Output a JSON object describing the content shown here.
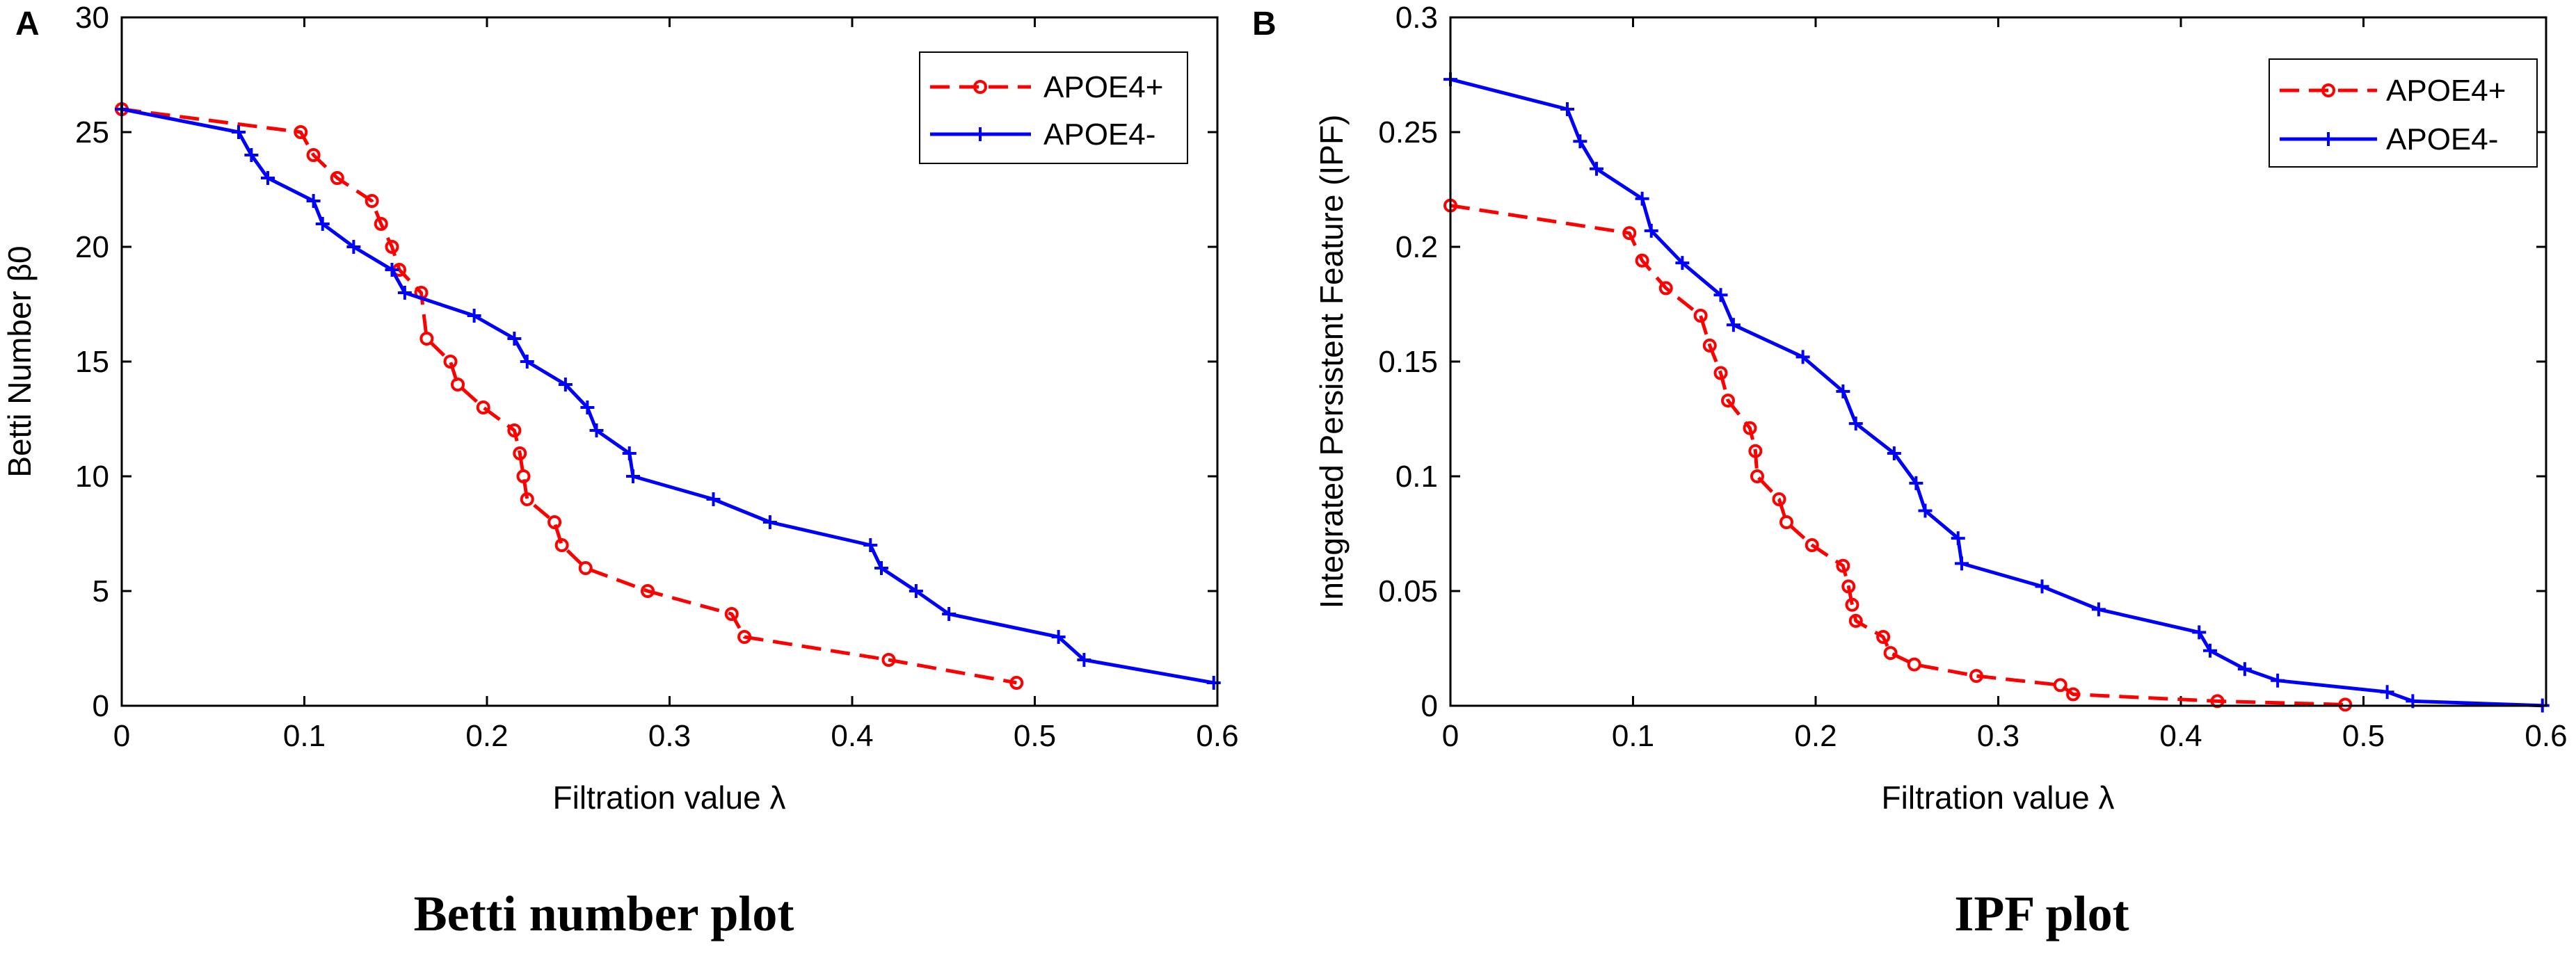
{
  "chart_data": [
    {
      "type": "line",
      "panel_label": "A",
      "title": "",
      "caption": "Betti  number plot",
      "xlabel": "Filtration value λ",
      "ylabel": "Betti Number β0",
      "xlim": [
        0,
        0.6
      ],
      "ylim": [
        0,
        30
      ],
      "xticks": [
        0,
        0.1,
        0.2,
        0.3,
        0.4,
        0.5,
        0.6
      ],
      "xtick_labels": [
        "0",
        "0.1",
        "0.2",
        "0.3",
        "0.4",
        "0.5",
        "0.6"
      ],
      "yticks": [
        0,
        5,
        10,
        15,
        20,
        25,
        30
      ],
      "ytick_labels": [
        "0",
        "5",
        "10",
        "15",
        "20",
        "25",
        "30"
      ],
      "legend_position": "top-right",
      "series": [
        {
          "name": "APOE4+",
          "color": "#ff0000",
          "line_style": "dashed",
          "marker": "circle",
          "x": [
            0,
            0.098,
            0.105,
            0.118,
            0.137,
            0.142,
            0.148,
            0.152,
            0.164,
            0.167,
            0.18,
            0.184,
            0.198,
            0.215,
            0.218,
            0.22,
            0.222,
            0.237,
            0.241,
            0.254,
            0.288,
            0.334,
            0.341,
            0.42,
            0.49
          ],
          "y": [
            26,
            25,
            24,
            23,
            22,
            21,
            20,
            19,
            18,
            16,
            15,
            14,
            13,
            12,
            11,
            10,
            9,
            8,
            7,
            6,
            5,
            4,
            3,
            2,
            1
          ]
        },
        {
          "name": "APOE4-",
          "color": "#0000ff",
          "line_style": "solid",
          "marker": "plus",
          "x": [
            0,
            0.064,
            0.071,
            0.08,
            0.105,
            0.11,
            0.127,
            0.148,
            0.155,
            0.193,
            0.215,
            0.222,
            0.243,
            0.255,
            0.26,
            0.278,
            0.28,
            0.324,
            0.355,
            0.41,
            0.416,
            0.435,
            0.453,
            0.513,
            0.527,
            0.598
          ],
          "y": [
            26,
            25,
            24,
            23,
            22,
            21,
            20,
            19,
            18,
            17,
            16,
            15,
            14,
            13,
            12,
            11,
            10,
            9,
            8,
            7,
            6,
            5,
            4,
            3,
            2,
            1
          ]
        }
      ]
    },
    {
      "type": "line",
      "panel_label": "B",
      "title": "",
      "caption": "IPF plot",
      "xlabel": "Filtration value λ",
      "ylabel": "Integrated Persistent Feature (IPF)",
      "xlim": [
        0,
        0.6
      ],
      "ylim": [
        0,
        0.3
      ],
      "xticks": [
        0,
        0.1,
        0.2,
        0.3,
        0.4,
        0.5,
        0.6
      ],
      "xtick_labels": [
        "0",
        "0.1",
        "0.2",
        "0.3",
        "0.4",
        "0.5",
        "0.6"
      ],
      "yticks": [
        0,
        0.05,
        0.1,
        0.15,
        0.2,
        0.25,
        0.3
      ],
      "ytick_labels": [
        "0",
        "0.05",
        "0.1",
        "0.15",
        "0.2",
        "0.25",
        "0.3"
      ],
      "legend_position": "top-right",
      "series": [
        {
          "name": "APOE4+",
          "color": "#ff0000",
          "line_style": "dashed",
          "marker": "circle",
          "x": [
            0,
            0.098,
            0.105,
            0.118,
            0.137,
            0.142,
            0.148,
            0.152,
            0.164,
            0.167,
            0.168,
            0.18,
            0.184,
            0.198,
            0.215,
            0.218,
            0.22,
            0.222,
            0.237,
            0.241,
            0.254,
            0.288,
            0.334,
            0.341,
            0.42,
            0.49
          ],
          "y": [
            0.218,
            0.206,
            0.194,
            0.182,
            0.17,
            0.157,
            0.145,
            0.133,
            0.121,
            0.111,
            0.1,
            0.09,
            0.08,
            0.07,
            0.061,
            0.052,
            0.044,
            0.037,
            0.03,
            0.023,
            0.018,
            0.013,
            0.009,
            0.005,
            0.002,
            0.0005
          ]
        },
        {
          "name": "APOE4-",
          "color": "#0000ff",
          "line_style": "solid",
          "marker": "plus",
          "x": [
            0,
            0.064,
            0.071,
            0.08,
            0.105,
            0.11,
            0.127,
            0.148,
            0.155,
            0.193,
            0.215,
            0.222,
            0.243,
            0.255,
            0.26,
            0.278,
            0.28,
            0.324,
            0.355,
            0.41,
            0.416,
            0.435,
            0.453,
            0.513,
            0.527,
            0.598
          ],
          "y": [
            0.273,
            0.26,
            0.246,
            0.234,
            0.221,
            0.207,
            0.193,
            0.179,
            0.166,
            0.152,
            0.137,
            0.123,
            0.11,
            0.097,
            0.085,
            0.073,
            0.062,
            0.052,
            0.042,
            0.032,
            0.024,
            0.016,
            0.011,
            0.006,
            0.002,
            0.0001
          ]
        }
      ]
    }
  ]
}
